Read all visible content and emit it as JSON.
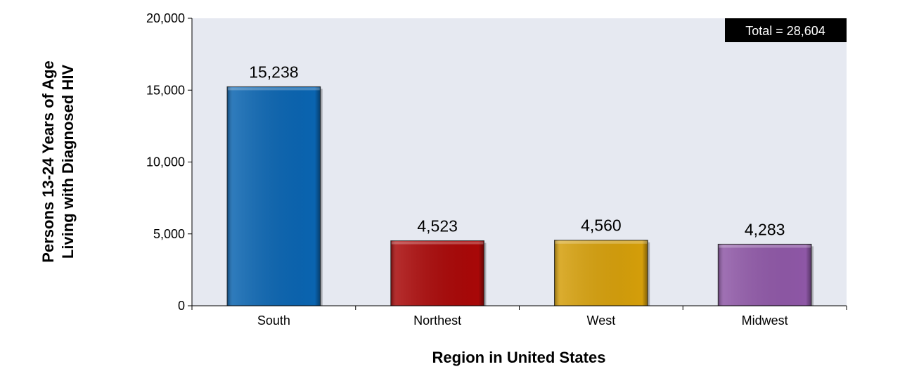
{
  "chart_data": {
    "type": "bar",
    "categories": [
      "South",
      "Northest",
      "West",
      "Midwest"
    ],
    "values": [
      15238,
      4523,
      4560,
      4283
    ],
    "value_labels": [
      "15,238",
      "4,523",
      "4,560",
      "4,283"
    ],
    "colors": [
      "#0a64b0",
      "#a80808",
      "#d49e0a",
      "#8e57a6"
    ],
    "xlabel": "Region in United States",
    "ylabel": [
      "Persons 13-24 Years of Age",
      "Living with Diagnosed  HIV"
    ],
    "ylim": [
      0,
      20000
    ],
    "yticks": [
      0,
      5000,
      10000,
      15000,
      20000
    ],
    "ytick_labels": [
      "0",
      "5,000",
      "10,000",
      "15,000",
      "20,000"
    ],
    "annotation": "Total = 28,604",
    "plot_background": "#e6e9f1",
    "grid": false
  }
}
